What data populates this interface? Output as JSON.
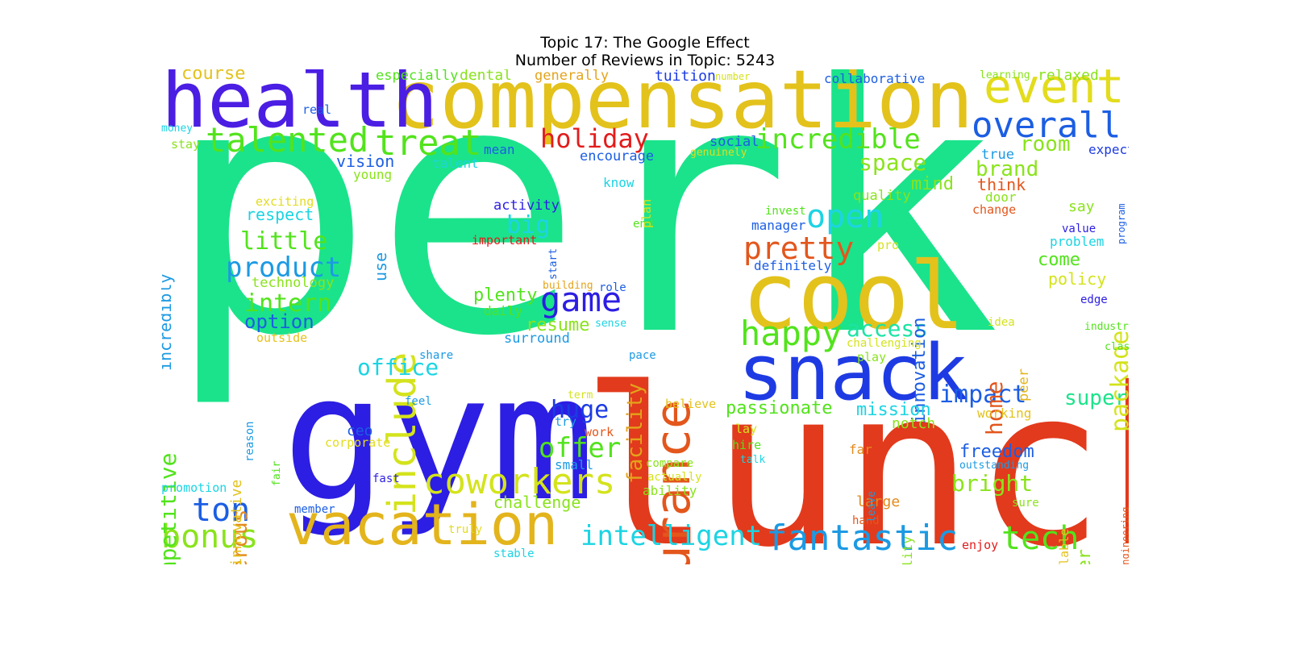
{
  "title": {
    "line1": "Topic 17: The Google Effect",
    "line2": "Number of Reviews in Topic: 5243"
  },
  "words": [
    {
      "text": "perk",
      "color": "#1be38b"
    },
    {
      "text": "lunch",
      "color": "#e23a1c"
    },
    {
      "text": "gym",
      "color": "#2c1ee3"
    },
    {
      "text": "compensation",
      "color": "#e3c21c"
    },
    {
      "text": "health",
      "color": "#4b1ee3"
    },
    {
      "text": "cool",
      "color": "#e3c21c"
    },
    {
      "text": "snack",
      "color": "#1e3be3"
    },
    {
      "text": "insurance",
      "color": "#e3561c"
    },
    {
      "text": "vacation",
      "color": "#e3b41c"
    },
    {
      "text": "include",
      "color": "#d4e31c"
    },
    {
      "text": "event",
      "color": "#e3dc1c"
    },
    {
      "text": "talented",
      "color": "#52e31c"
    },
    {
      "text": "treat",
      "color": "#52e31c"
    },
    {
      "text": "overall",
      "color": "#1c5ee3"
    },
    {
      "text": "coworkers",
      "color": "#d4e31c"
    },
    {
      "text": "fantastic",
      "color": "#1c9ae3"
    },
    {
      "text": "game",
      "color": "#2c1ee3"
    },
    {
      "text": "pretty",
      "color": "#e3561c"
    },
    {
      "text": "happy",
      "color": "#52e31c"
    },
    {
      "text": "open",
      "color": "#1cd4e3"
    },
    {
      "text": "incredible",
      "color": "#52e31c"
    },
    {
      "text": "holiday",
      "color": "#e31c1c"
    },
    {
      "text": "bonus",
      "color": "#8ae31c"
    },
    {
      "text": "ton",
      "color": "#1c5ee3"
    },
    {
      "text": "tech",
      "color": "#52e31c"
    },
    {
      "text": "intelligent",
      "color": "#1cd4e3"
    },
    {
      "text": "product",
      "color": "#1c9ae3"
    },
    {
      "text": "intern",
      "color": "#52e31c"
    },
    {
      "text": "little",
      "color": "#52e31c"
    },
    {
      "text": "office",
      "color": "#1cd4e3"
    },
    {
      "text": "impact",
      "color": "#1c5ee3"
    },
    {
      "text": "huge",
      "color": "#1c3be3"
    },
    {
      "text": "offer",
      "color": "#52e31c"
    },
    {
      "text": "big",
      "color": "#1cd4e3"
    },
    {
      "text": "space",
      "color": "#8ae31c"
    },
    {
      "text": "access",
      "color": "#1ce3a4"
    },
    {
      "text": "home",
      "color": "#e3561c"
    },
    {
      "text": "super",
      "color": "#1ce38b"
    },
    {
      "text": "brand",
      "color": "#8ae31c"
    },
    {
      "text": "room",
      "color": "#8ae31c"
    },
    {
      "text": "package",
      "color": "#d4e31c"
    },
    {
      "text": "competitive",
      "color": "#52e31c"
    },
    {
      "text": "generous",
      "color": "#e38a1c"
    },
    {
      "text": "facility",
      "color": "#e3a41c"
    },
    {
      "text": "innovation",
      "color": "#1c5ee3"
    },
    {
      "text": "bright",
      "color": "#8ae31c"
    },
    {
      "text": "freedom",
      "color": "#1c5ee3"
    },
    {
      "text": "passionate",
      "color": "#52e31c"
    },
    {
      "text": "mission",
      "color": "#1cd4e3"
    },
    {
      "text": "engineer",
      "color": "#8ae31c"
    },
    {
      "text": "option",
      "color": "#1c5ee3"
    },
    {
      "text": "plenty",
      "color": "#52e31c"
    },
    {
      "text": "resume",
      "color": "#8ae31c"
    },
    {
      "text": "course",
      "color": "#e3c21c"
    },
    {
      "text": "respect",
      "color": "#1cd4e3"
    },
    {
      "text": "vision",
      "color": "#1c5ee3"
    },
    {
      "text": "incredibly",
      "color": "#1c9ae3"
    },
    {
      "text": "come",
      "color": "#52e31c"
    },
    {
      "text": "policy",
      "color": "#d4e31c"
    },
    {
      "text": "challenge",
      "color": "#8ae31c"
    },
    {
      "text": "mind",
      "color": "#8ae31c"
    },
    {
      "text": "think",
      "color": "#e3561c"
    },
    {
      "text": "relaxed",
      "color": "#8ae31c"
    },
    {
      "text": "dental",
      "color": "#8ae31c"
    },
    {
      "text": "especially",
      "color": "#52e31c"
    },
    {
      "text": "generally",
      "color": "#e3a41c"
    },
    {
      "text": "tuition",
      "color": "#1c3be3"
    },
    {
      "text": "collaborative",
      "color": "#1c5ee3"
    },
    {
      "text": "quality",
      "color": "#8ae31c"
    },
    {
      "text": "social",
      "color": "#1c5ee3"
    },
    {
      "text": "encourage",
      "color": "#1c5ee3"
    },
    {
      "text": "activity",
      "color": "#2c1ee3"
    },
    {
      "text": "ceo",
      "color": "#1c5ee3"
    },
    {
      "text": "innovative",
      "color": "#e3c21c"
    },
    {
      "text": "use",
      "color": "#1c9ae3"
    },
    {
      "text": "say",
      "color": "#8ae31c"
    },
    {
      "text": "true",
      "color": "#1c9ae3"
    },
    {
      "text": "large",
      "color": "#e38a1c"
    },
    {
      "text": "surround",
      "color": "#1c9ae3"
    },
    {
      "text": "technology",
      "color": "#8ae31c"
    },
    {
      "text": "notch",
      "color": "#8ae31c"
    },
    {
      "text": "definitely",
      "color": "#1c5ee3"
    },
    {
      "text": "manager",
      "color": "#1c5ee3"
    },
    {
      "text": "problem",
      "color": "#1cd4e3"
    },
    {
      "text": "expect",
      "color": "#1c3be3"
    },
    {
      "text": "mean",
      "color": "#1c5ee3"
    },
    {
      "text": "door",
      "color": "#8ae31c"
    },
    {
      "text": "change",
      "color": "#e3561c"
    },
    {
      "text": "working",
      "color": "#e3c21c"
    },
    {
      "text": "peer",
      "color": "#e3b41c"
    },
    {
      "text": "flexibility",
      "color": "#8ae31c"
    },
    {
      "text": "available",
      "color": "#e3c21c"
    },
    {
      "text": "small",
      "color": "#1c9ae3"
    },
    {
      "text": "work",
      "color": "#e3561c"
    },
    {
      "text": "try",
      "color": "#1c9ae3"
    },
    {
      "text": "important",
      "color": "#e31c1c"
    },
    {
      "text": "know",
      "color": "#1cd4e3"
    },
    {
      "text": "daily",
      "color": "#52e31c"
    },
    {
      "text": "young",
      "color": "#8ae31c"
    },
    {
      "text": "talent",
      "color": "#1cd4e3"
    },
    {
      "text": "stay",
      "color": "#8ae31c"
    },
    {
      "text": "money",
      "color": "#1cd4e3"
    },
    {
      "text": "real",
      "color": "#1c5ee3"
    },
    {
      "text": "exciting",
      "color": "#e3dc1c"
    },
    {
      "text": "promotion",
      "color": "#1cd4e3"
    },
    {
      "text": "corporate",
      "color": "#e3dc1c"
    },
    {
      "text": "member",
      "color": "#1c5ee3"
    },
    {
      "text": "outside",
      "color": "#e3c21c"
    },
    {
      "text": "share",
      "color": "#1c9ae3"
    },
    {
      "text": "feel",
      "color": "#1c9ae3"
    },
    {
      "text": "reason",
      "color": "#1c9ae3"
    },
    {
      "text": "fair",
      "color": "#52e31c"
    },
    {
      "text": "fast",
      "color": "#2c1ee3"
    },
    {
      "text": "truly",
      "color": "#e3dc1c"
    },
    {
      "text": "stable",
      "color": "#1cd4e3"
    },
    {
      "text": "building",
      "color": "#e3a41c"
    },
    {
      "text": "role",
      "color": "#1c5ee3"
    },
    {
      "text": "sense",
      "color": "#1cd4e3"
    },
    {
      "text": "pace",
      "color": "#1c9ae3"
    },
    {
      "text": "end",
      "color": "#52e31c"
    },
    {
      "text": "plan",
      "color": "#d4e31c"
    },
    {
      "text": "start",
      "color": "#1c5ee3"
    },
    {
      "text": "term",
      "color": "#d4e31c"
    },
    {
      "text": "believe",
      "color": "#e3c21c"
    },
    {
      "text": "compare",
      "color": "#8ae31c"
    },
    {
      "text": "actually",
      "color": "#d4e31c"
    },
    {
      "text": "ability",
      "color": "#8ae31c"
    },
    {
      "text": "lay",
      "color": "#d4e31c"
    },
    {
      "text": "hire",
      "color": "#52e31c"
    },
    {
      "text": "talk",
      "color": "#1cd4e3"
    },
    {
      "text": "far",
      "color": "#e38a1c"
    },
    {
      "text": "hand",
      "color": "#e3561c"
    },
    {
      "text": "leave",
      "color": "#1c9ae3"
    },
    {
      "text": "pro",
      "color": "#d4e31c"
    },
    {
      "text": "play",
      "color": "#8ae31c"
    },
    {
      "text": "challenging",
      "color": "#d4e31c"
    },
    {
      "text": "invest",
      "color": "#52e31c"
    },
    {
      "text": "value",
      "color": "#2c1ee3"
    },
    {
      "text": "edge",
      "color": "#2c1ee3"
    },
    {
      "text": "industry",
      "color": "#52e31c"
    },
    {
      "text": "class",
      "color": "#52e31c"
    },
    {
      "text": "idea",
      "color": "#d4e31c"
    },
    {
      "text": "enjoy",
      "color": "#e31c1c"
    },
    {
      "text": "outstanding",
      "color": "#1c9ae3"
    },
    {
      "text": "sure",
      "color": "#8ae31c"
    },
    {
      "text": "engineering",
      "color": "#e3561c"
    },
    {
      "text": "program",
      "color": "#1c5ee3"
    },
    {
      "text": "learning",
      "color": "#8ae31c"
    },
    {
      "text": "number",
      "color": "#d4e31c"
    },
    {
      "text": "genuinely",
      "color": "#e3dc1c"
    }
  ]
}
